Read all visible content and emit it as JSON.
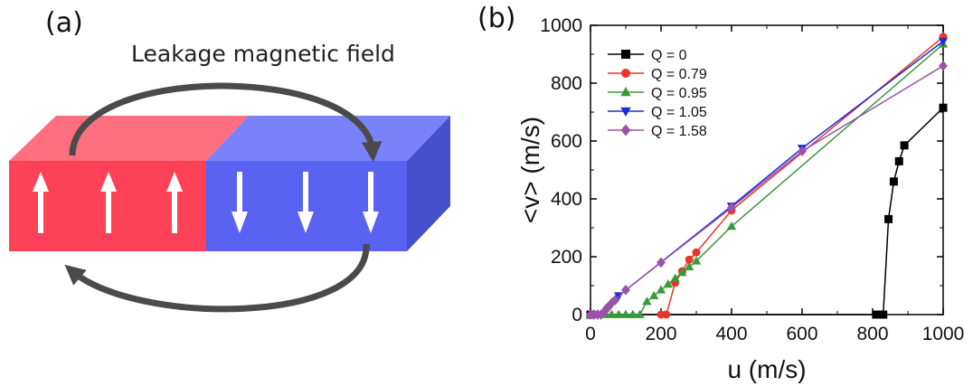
{
  "panel_a": {
    "label": "(a)",
    "caption": "Leakage magnetic field",
    "colors": {
      "red_front": "#fd4257",
      "red_top": "#ff6f80",
      "blue_front": "#5a62f2",
      "blue_top": "#7a82f9",
      "blue_side": "#4650cc",
      "field_line": "#4a4a4a"
    },
    "icons": [
      "up-arrow-icon",
      "down-arrow-icon",
      "field-arrowhead-icon"
    ]
  },
  "panel_b": {
    "label": "(b)"
  },
  "chart_data": {
    "type": "line",
    "xlabel": "u (m/s)",
    "ylabel": "<v> (m/s)",
    "xlim": [
      0,
      1000
    ],
    "ylim": [
      0,
      1000
    ],
    "xticks": [
      0,
      200,
      400,
      600,
      800,
      1000
    ],
    "yticks": [
      0,
      200,
      400,
      600,
      800,
      1000
    ],
    "grid": false,
    "legend_position": "top-left",
    "series": [
      {
        "name": "Q = 0",
        "color": "#000000",
        "marker": "square",
        "x": [
          0,
          810,
          830,
          845,
          860,
          875,
          890,
          1000
        ],
        "y": [
          0,
          0,
          0,
          330,
          460,
          530,
          585,
          715
        ]
      },
      {
        "name": "Q = 0.79",
        "color": "#e8352a",
        "marker": "circle",
        "x": [
          200,
          215,
          240,
          260,
          280,
          300,
          400,
          1000
        ],
        "y": [
          0,
          0,
          110,
          150,
          190,
          215,
          360,
          960
        ]
      },
      {
        "name": "Q = 0.95",
        "color": "#3a9a3a",
        "marker": "triangle-up",
        "x": [
          0,
          20,
          40,
          60,
          80,
          100,
          120,
          140,
          160,
          180,
          200,
          220,
          240,
          260,
          280,
          300,
          400,
          1000
        ],
        "y": [
          0,
          0,
          0,
          0,
          0,
          0,
          0,
          0,
          45,
          65,
          85,
          105,
          125,
          145,
          165,
          185,
          305,
          935
        ]
      },
      {
        "name": "Q = 1.05",
        "color": "#1f2bd6",
        "marker": "triangle-down",
        "x": [
          80,
          400,
          600,
          1000
        ],
        "y": [
          65,
          375,
          575,
          945
        ]
      },
      {
        "name": "Q = 1.58",
        "color": "#9b52a8",
        "marker": "diamond",
        "x": [
          0,
          10,
          20,
          30,
          40,
          45,
          50,
          60,
          70,
          100,
          200,
          400,
          600,
          1000
        ],
        "y": [
          0,
          0,
          0,
          0,
          10,
          20,
          25,
          40,
          50,
          85,
          180,
          370,
          565,
          860
        ]
      }
    ]
  }
}
